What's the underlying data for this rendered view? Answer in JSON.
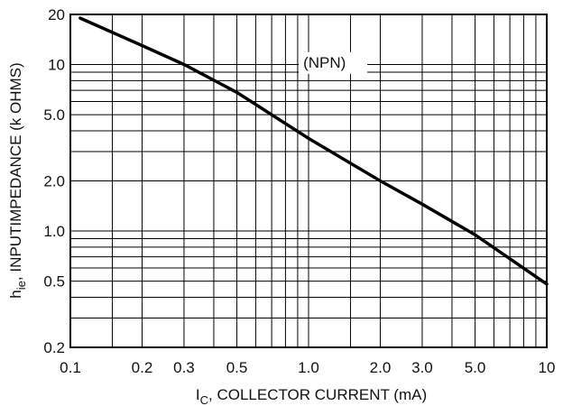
{
  "chart_data": {
    "type": "line",
    "xscale": "log",
    "yscale": "log",
    "xlim": [
      0.1,
      10
    ],
    "ylim": [
      0.2,
      20
    ],
    "x_ticks": [
      {
        "value": 0.1,
        "label": "0.1"
      },
      {
        "value": 0.2,
        "label": "0.2"
      },
      {
        "value": 0.3,
        "label": "0.3"
      },
      {
        "value": 0.5,
        "label": "0.5"
      },
      {
        "value": 1.0,
        "label": "1.0"
      },
      {
        "value": 2.0,
        "label": "2.0"
      },
      {
        "value": 3.0,
        "label": "3.0"
      },
      {
        "value": 5.0,
        "label": "5.0"
      },
      {
        "value": 10,
        "label": "10"
      }
    ],
    "y_ticks": [
      {
        "value": 0.2,
        "label": "0.2"
      },
      {
        "value": 0.5,
        "label": "0.5"
      },
      {
        "value": 1.0,
        "label": "1.0"
      },
      {
        "value": 2.0,
        "label": "2.0"
      },
      {
        "value": 5.0,
        "label": "5.0"
      },
      {
        "value": 10,
        "label": "10"
      },
      {
        "value": 20,
        "label": "20"
      }
    ],
    "x_grid": [
      0.1,
      0.15,
      0.2,
      0.3,
      0.4,
      0.5,
      0.6,
      0.7,
      0.8,
      0.9,
      1,
      1.5,
      2,
      3,
      4,
      5,
      6,
      7,
      8,
      9,
      10
    ],
    "y_grid": [
      0.2,
      0.3,
      0.4,
      0.5,
      0.6,
      0.7,
      0.8,
      0.9,
      1,
      2,
      3,
      4,
      5,
      6,
      7,
      8,
      9,
      10,
      20
    ],
    "grid": true,
    "xlabel_main": "I",
    "xlabel_sub": "C",
    "xlabel_rest": ", COLLECTOR CURRENT (mA)",
    "ylabel_main": "h",
    "ylabel_sub": "ie",
    "ylabel_rest": ", INPUTIMPEDANCE (k OHMS)",
    "annotation": "(NPN)",
    "annotation_x": 0.95,
    "annotation_y": 9.6,
    "series": [
      {
        "x": [
          0.11,
          0.2,
          0.3,
          0.5,
          1.0,
          2.0,
          3.0,
          5.0,
          10
        ],
        "y": [
          19,
          13,
          10,
          6.8,
          3.6,
          2.0,
          1.45,
          0.95,
          0.48
        ]
      }
    ]
  }
}
